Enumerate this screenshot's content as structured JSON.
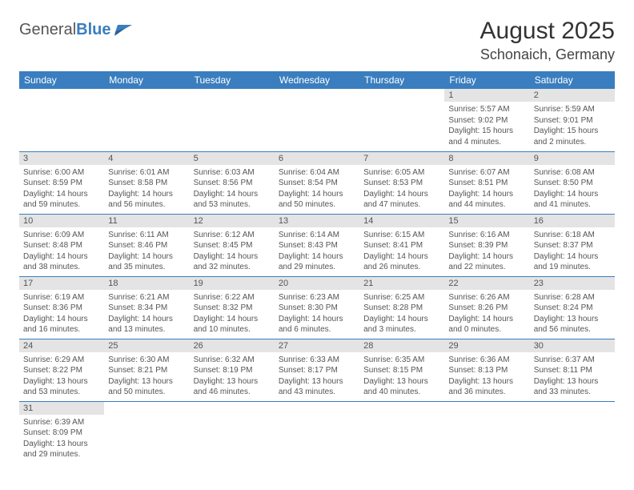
{
  "logo": {
    "general": "General",
    "blue": "Blue"
  },
  "title": "August 2025",
  "location": "Schonaich, Germany",
  "colors": {
    "header_bg": "#3a7ebf",
    "header_text": "#ffffff",
    "daynum_bg": "#e4e4e4",
    "border": "#3a7ebf",
    "body_text": "#555555",
    "page_bg": "#ffffff"
  },
  "typography": {
    "title_fontsize": 30,
    "location_fontsize": 18,
    "weekday_fontsize": 12,
    "daynum_fontsize": 11,
    "body_fontsize": 10
  },
  "weekdays": [
    "Sunday",
    "Monday",
    "Tuesday",
    "Wednesday",
    "Thursday",
    "Friday",
    "Saturday"
  ],
  "layout": {
    "columns": 7,
    "rows": 6,
    "first_day_column": 5
  },
  "days": [
    {
      "n": "1",
      "sunrise": "Sunrise: 5:57 AM",
      "sunset": "Sunset: 9:02 PM",
      "daylight": "Daylight: 15 hours and 4 minutes."
    },
    {
      "n": "2",
      "sunrise": "Sunrise: 5:59 AM",
      "sunset": "Sunset: 9:01 PM",
      "daylight": "Daylight: 15 hours and 2 minutes."
    },
    {
      "n": "3",
      "sunrise": "Sunrise: 6:00 AM",
      "sunset": "Sunset: 8:59 PM",
      "daylight": "Daylight: 14 hours and 59 minutes."
    },
    {
      "n": "4",
      "sunrise": "Sunrise: 6:01 AM",
      "sunset": "Sunset: 8:58 PM",
      "daylight": "Daylight: 14 hours and 56 minutes."
    },
    {
      "n": "5",
      "sunrise": "Sunrise: 6:03 AM",
      "sunset": "Sunset: 8:56 PM",
      "daylight": "Daylight: 14 hours and 53 minutes."
    },
    {
      "n": "6",
      "sunrise": "Sunrise: 6:04 AM",
      "sunset": "Sunset: 8:54 PM",
      "daylight": "Daylight: 14 hours and 50 minutes."
    },
    {
      "n": "7",
      "sunrise": "Sunrise: 6:05 AM",
      "sunset": "Sunset: 8:53 PM",
      "daylight": "Daylight: 14 hours and 47 minutes."
    },
    {
      "n": "8",
      "sunrise": "Sunrise: 6:07 AM",
      "sunset": "Sunset: 8:51 PM",
      "daylight": "Daylight: 14 hours and 44 minutes."
    },
    {
      "n": "9",
      "sunrise": "Sunrise: 6:08 AM",
      "sunset": "Sunset: 8:50 PM",
      "daylight": "Daylight: 14 hours and 41 minutes."
    },
    {
      "n": "10",
      "sunrise": "Sunrise: 6:09 AM",
      "sunset": "Sunset: 8:48 PM",
      "daylight": "Daylight: 14 hours and 38 minutes."
    },
    {
      "n": "11",
      "sunrise": "Sunrise: 6:11 AM",
      "sunset": "Sunset: 8:46 PM",
      "daylight": "Daylight: 14 hours and 35 minutes."
    },
    {
      "n": "12",
      "sunrise": "Sunrise: 6:12 AM",
      "sunset": "Sunset: 8:45 PM",
      "daylight": "Daylight: 14 hours and 32 minutes."
    },
    {
      "n": "13",
      "sunrise": "Sunrise: 6:14 AM",
      "sunset": "Sunset: 8:43 PM",
      "daylight": "Daylight: 14 hours and 29 minutes."
    },
    {
      "n": "14",
      "sunrise": "Sunrise: 6:15 AM",
      "sunset": "Sunset: 8:41 PM",
      "daylight": "Daylight: 14 hours and 26 minutes."
    },
    {
      "n": "15",
      "sunrise": "Sunrise: 6:16 AM",
      "sunset": "Sunset: 8:39 PM",
      "daylight": "Daylight: 14 hours and 22 minutes."
    },
    {
      "n": "16",
      "sunrise": "Sunrise: 6:18 AM",
      "sunset": "Sunset: 8:37 PM",
      "daylight": "Daylight: 14 hours and 19 minutes."
    },
    {
      "n": "17",
      "sunrise": "Sunrise: 6:19 AM",
      "sunset": "Sunset: 8:36 PM",
      "daylight": "Daylight: 14 hours and 16 minutes."
    },
    {
      "n": "18",
      "sunrise": "Sunrise: 6:21 AM",
      "sunset": "Sunset: 8:34 PM",
      "daylight": "Daylight: 14 hours and 13 minutes."
    },
    {
      "n": "19",
      "sunrise": "Sunrise: 6:22 AM",
      "sunset": "Sunset: 8:32 PM",
      "daylight": "Daylight: 14 hours and 10 minutes."
    },
    {
      "n": "20",
      "sunrise": "Sunrise: 6:23 AM",
      "sunset": "Sunset: 8:30 PM",
      "daylight": "Daylight: 14 hours and 6 minutes."
    },
    {
      "n": "21",
      "sunrise": "Sunrise: 6:25 AM",
      "sunset": "Sunset: 8:28 PM",
      "daylight": "Daylight: 14 hours and 3 minutes."
    },
    {
      "n": "22",
      "sunrise": "Sunrise: 6:26 AM",
      "sunset": "Sunset: 8:26 PM",
      "daylight": "Daylight: 14 hours and 0 minutes."
    },
    {
      "n": "23",
      "sunrise": "Sunrise: 6:28 AM",
      "sunset": "Sunset: 8:24 PM",
      "daylight": "Daylight: 13 hours and 56 minutes."
    },
    {
      "n": "24",
      "sunrise": "Sunrise: 6:29 AM",
      "sunset": "Sunset: 8:22 PM",
      "daylight": "Daylight: 13 hours and 53 minutes."
    },
    {
      "n": "25",
      "sunrise": "Sunrise: 6:30 AM",
      "sunset": "Sunset: 8:21 PM",
      "daylight": "Daylight: 13 hours and 50 minutes."
    },
    {
      "n": "26",
      "sunrise": "Sunrise: 6:32 AM",
      "sunset": "Sunset: 8:19 PM",
      "daylight": "Daylight: 13 hours and 46 minutes."
    },
    {
      "n": "27",
      "sunrise": "Sunrise: 6:33 AM",
      "sunset": "Sunset: 8:17 PM",
      "daylight": "Daylight: 13 hours and 43 minutes."
    },
    {
      "n": "28",
      "sunrise": "Sunrise: 6:35 AM",
      "sunset": "Sunset: 8:15 PM",
      "daylight": "Daylight: 13 hours and 40 minutes."
    },
    {
      "n": "29",
      "sunrise": "Sunrise: 6:36 AM",
      "sunset": "Sunset: 8:13 PM",
      "daylight": "Daylight: 13 hours and 36 minutes."
    },
    {
      "n": "30",
      "sunrise": "Sunrise: 6:37 AM",
      "sunset": "Sunset: 8:11 PM",
      "daylight": "Daylight: 13 hours and 33 minutes."
    },
    {
      "n": "31",
      "sunrise": "Sunrise: 6:39 AM",
      "sunset": "Sunset: 8:09 PM",
      "daylight": "Daylight: 13 hours and 29 minutes."
    }
  ]
}
